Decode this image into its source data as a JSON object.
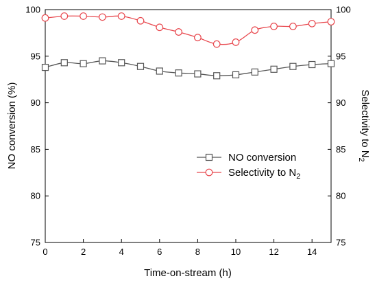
{
  "chart_data": {
    "type": "line",
    "xlabel": "Time-on-stream (h)",
    "ylabel_left": "NO conversion (%)",
    "ylabel_right": "Selectivity to N",
    "ylabel_right_subscript": "2",
    "xlim": [
      0,
      15
    ],
    "ylim": [
      75,
      100
    ],
    "x_ticks": [
      0,
      2,
      4,
      6,
      8,
      10,
      12,
      14
    ],
    "y_ticks": [
      75,
      80,
      85,
      90,
      95,
      100
    ],
    "grid": false,
    "legend_position": "center-right",
    "x": [
      0,
      1,
      2,
      3,
      4,
      5,
      6,
      7,
      8,
      9,
      10,
      11,
      12,
      13,
      14,
      15
    ],
    "series": [
      {
        "name": "NO conversion",
        "axis": "left",
        "marker": "square",
        "color": "#555555",
        "values": [
          93.8,
          94.3,
          94.2,
          94.5,
          94.3,
          93.9,
          93.4,
          93.2,
          93.1,
          92.9,
          93.0,
          93.3,
          93.6,
          93.9,
          94.1,
          94.2
        ]
      },
      {
        "name": "Selectivity to N",
        "name_subscript": "2",
        "axis": "right",
        "marker": "circle",
        "color": "#e8474d",
        "values": [
          99.1,
          99.3,
          99.3,
          99.2,
          99.3,
          98.8,
          98.1,
          97.6,
          97.0,
          96.3,
          96.5,
          97.8,
          98.2,
          98.2,
          98.5,
          98.7
        ]
      }
    ]
  }
}
